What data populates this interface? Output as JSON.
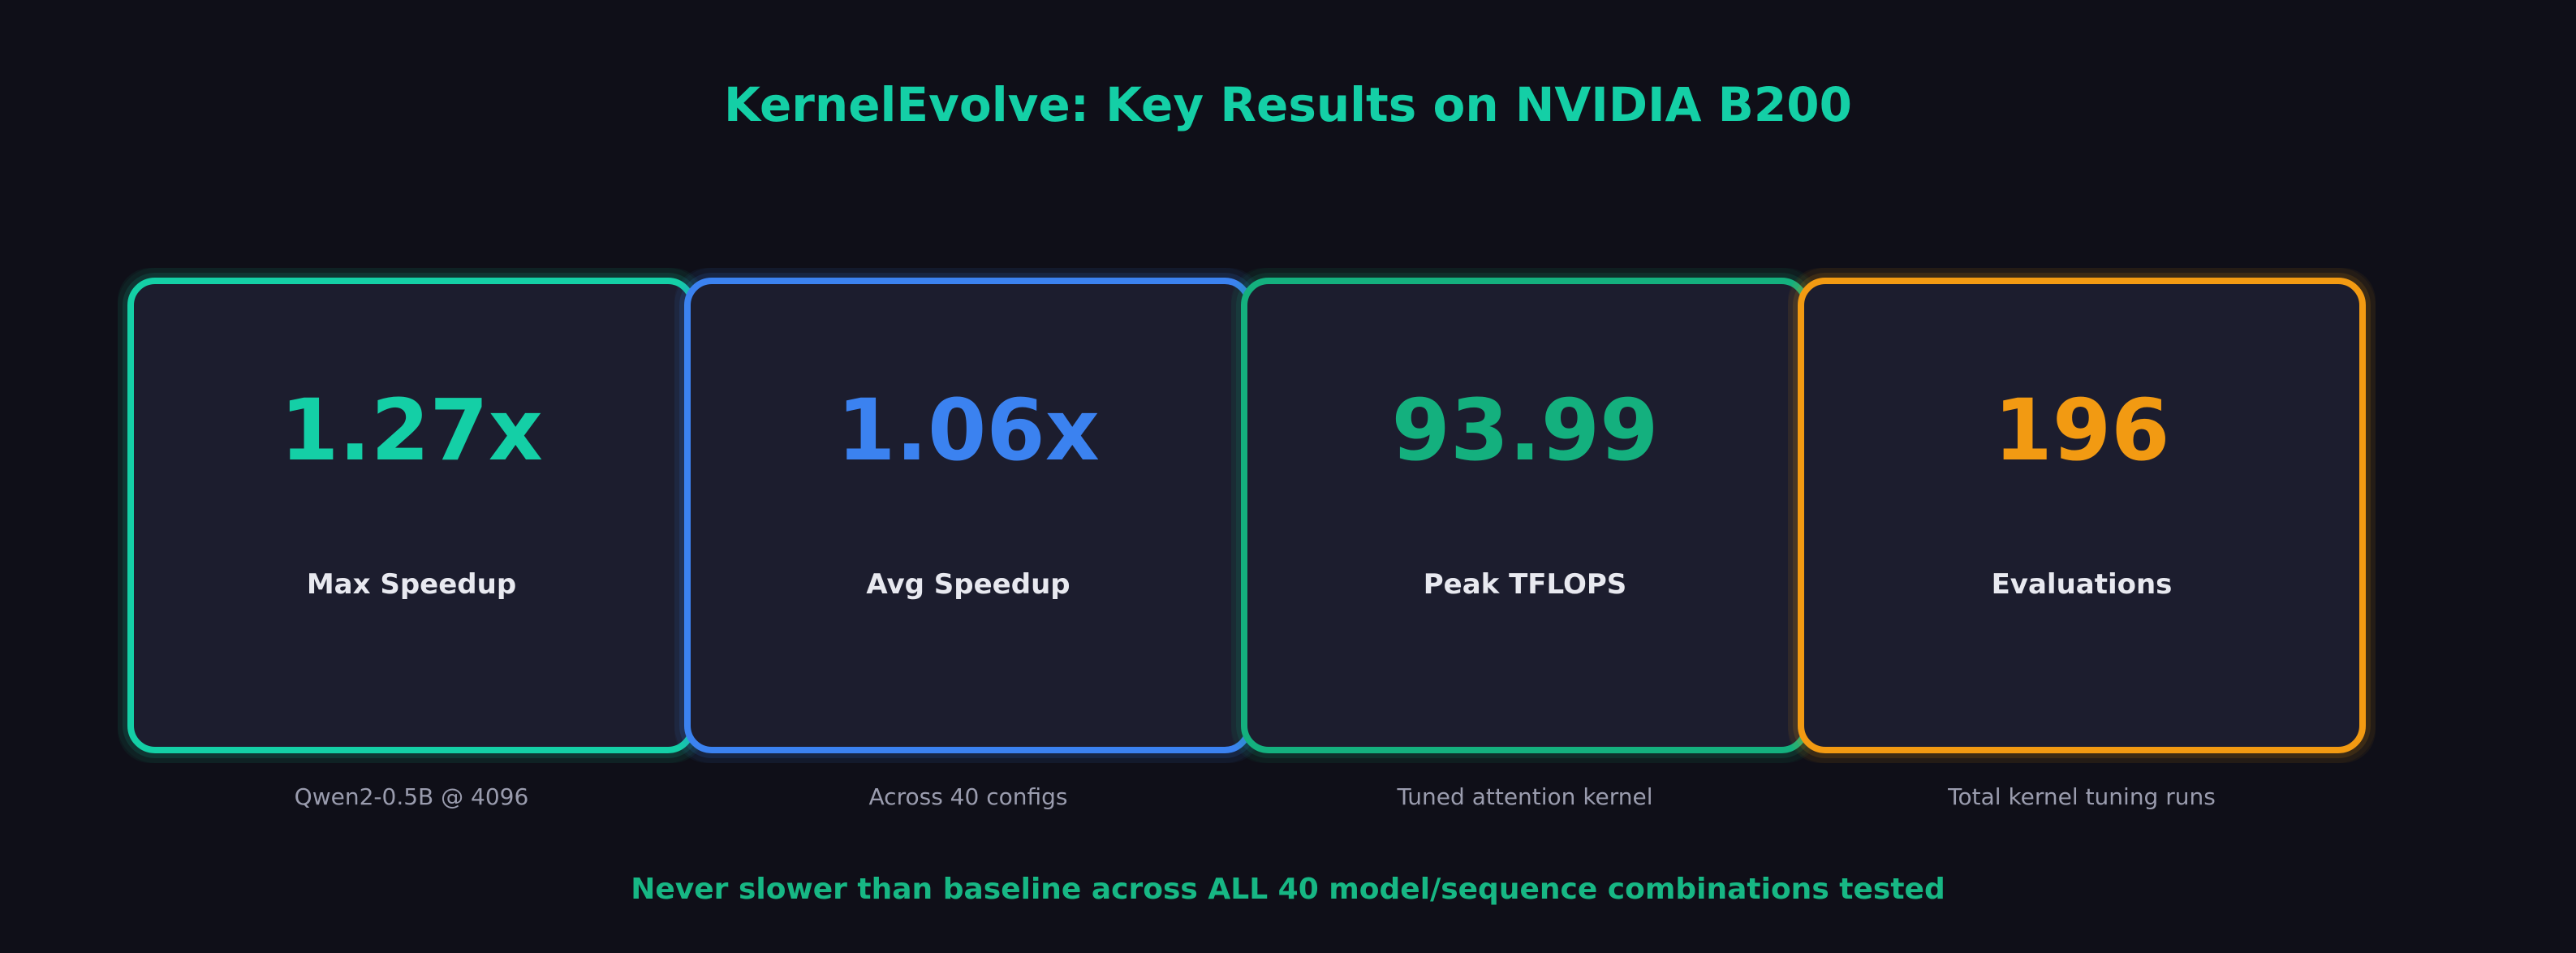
{
  "title": "KernelEvolve: Key Results on NVIDIA B200",
  "cards": [
    {
      "value": "1.27x",
      "label": "Max Speedup",
      "caption": "Qwen2-0.5B @ 4096",
      "color": "#14cfa6"
    },
    {
      "value": "1.06x",
      "label": "Avg Speedup",
      "caption": "Across 40 configs",
      "color": "#3b82f0"
    },
    {
      "value": "93.99",
      "label": "Peak TFLOPS",
      "caption": "Tuned attention kernel",
      "color": "#14b07e"
    },
    {
      "value": "196",
      "label": "Evaluations",
      "caption": "Total kernel tuning runs",
      "color": "#f29a12"
    }
  ],
  "footer": "Never slower than baseline across ALL 40 model/sequence combinations tested"
}
